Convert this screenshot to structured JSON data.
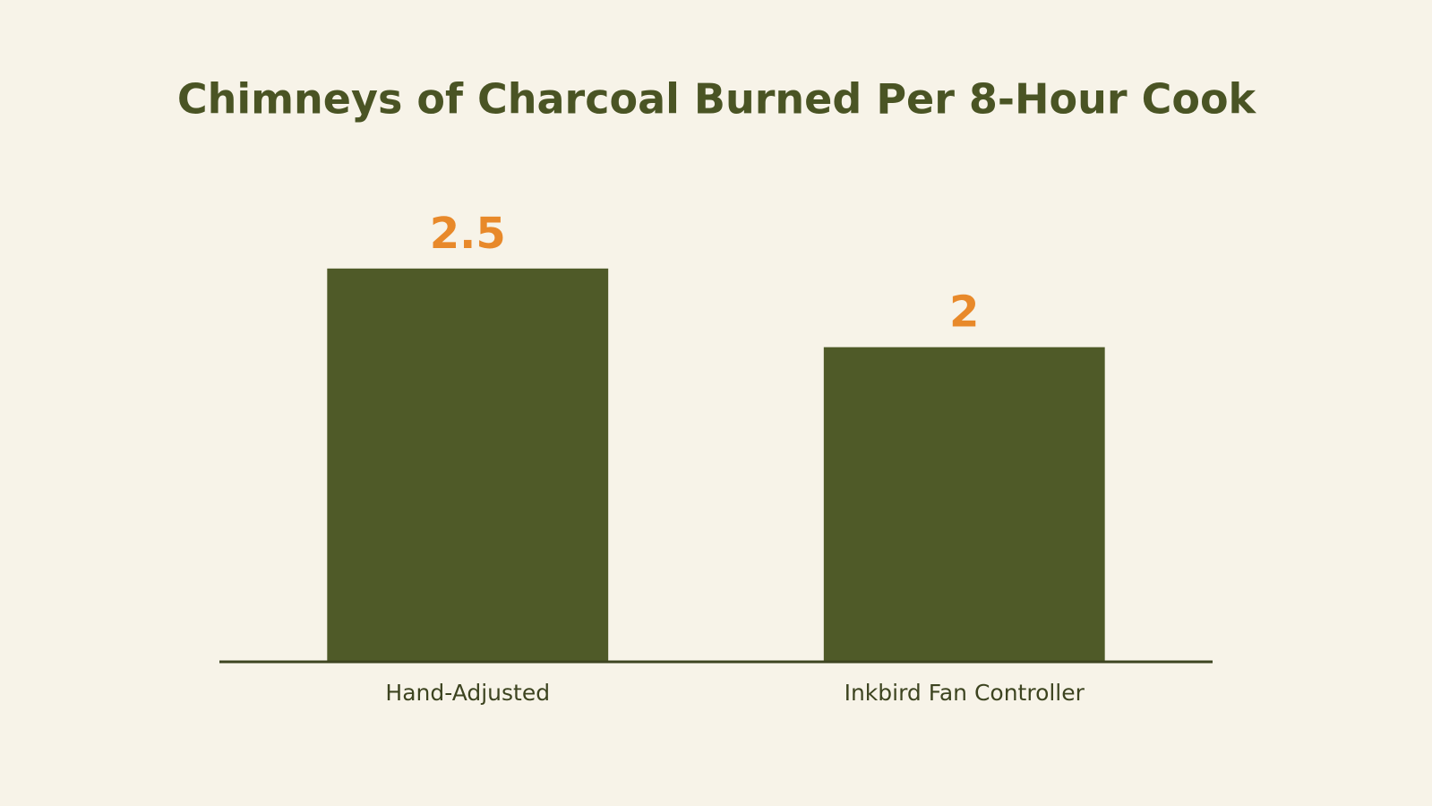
{
  "chart_data": {
    "type": "bar",
    "title": "Chimneys of Charcoal Burned Per 8-Hour Cook",
    "categories": [
      "Hand-Adjusted",
      "Inkbird Fan Controller"
    ],
    "values": [
      2.5,
      2
    ],
    "color": "#4f5a28",
    "value_label_color": "#e8892a",
    "ylim": [
      0,
      3
    ],
    "grid": false
  }
}
